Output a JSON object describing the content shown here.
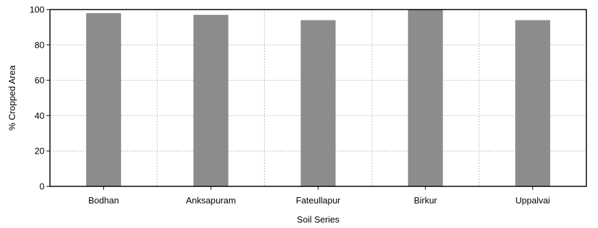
{
  "chart_data": {
    "type": "bar",
    "categories": [
      "Bodhan",
      "Anksapuram",
      "Fateullapur",
      "Birkur",
      "Uppalvai"
    ],
    "values": [
      98,
      97,
      94,
      100,
      94
    ],
    "title": "",
    "xlabel": "Soil Series",
    "ylabel": "% Cropped Area",
    "ylim": [
      0,
      100
    ],
    "yticks": [
      0,
      20,
      40,
      60,
      80,
      100
    ],
    "grid": true,
    "bar_color": "#8c8c8c"
  }
}
